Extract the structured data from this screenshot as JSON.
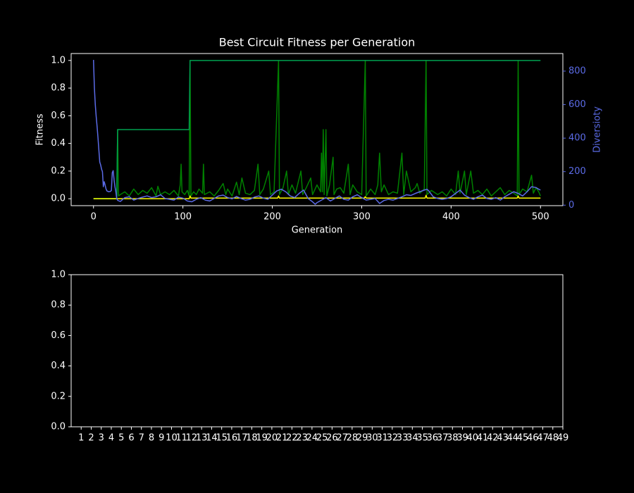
{
  "chart_data": [
    {
      "type": "line",
      "title": "Best Circuit Fitness per Generation",
      "xlabel": "Generation",
      "ylabel": "Fitness",
      "y2label": "Diversioty",
      "xlim": [
        -25,
        525
      ],
      "xticks": [
        0,
        100,
        200,
        300,
        400,
        500
      ],
      "ylim": [
        -0.05,
        1.05
      ],
      "yticks": [
        {
          "value": 0,
          "label": "0.0"
        },
        {
          "value": 0.2,
          "label": "0.2"
        },
        {
          "value": 0.4,
          "label": "0.4"
        },
        {
          "value": 0.6,
          "label": "0.6"
        },
        {
          "value": 0.8,
          "label": "0.8"
        },
        {
          "value": 1,
          "label": "1.0"
        }
      ],
      "y2lim": [
        -3,
        905
      ],
      "y2ticks": [
        0,
        200,
        400,
        600,
        800
      ],
      "series": [
        {
          "color": "#008000",
          "x": [
            0,
            5,
            10,
            15,
            20,
            25,
            26,
            27,
            28,
            30,
            35,
            40,
            45,
            50,
            55,
            60,
            65,
            70,
            72,
            75,
            80,
            85,
            90,
            95,
            97,
            98,
            99,
            102,
            105,
            107,
            108,
            109,
            112,
            115,
            118,
            122,
            123,
            124,
            130,
            135,
            140,
            145,
            148,
            150,
            155,
            160,
            163,
            166,
            170,
            175,
            180,
            184,
            186,
            190,
            196,
            198,
            202,
            207,
            208,
            212,
            216,
            218,
            222,
            226,
            232,
            234,
            238,
            243,
            245,
            250,
            254,
            255,
            256,
            257,
            258,
            260,
            261,
            264,
            268,
            269,
            272,
            276,
            280,
            285,
            287,
            290,
            295,
            300,
            304,
            305,
            310,
            315,
            318,
            320,
            322,
            325,
            330,
            335,
            340,
            345,
            347,
            350,
            355,
            360,
            362,
            365,
            370,
            372,
            373,
            378,
            385,
            390,
            395,
            400,
            405,
            408,
            410,
            415,
            417,
            422,
            425,
            430,
            435,
            440,
            445,
            450,
            455,
            460,
            465,
            470,
            474,
            475,
            476,
            480,
            485,
            490,
            492,
            495,
            498,
            500
          ],
          "values": [
            0,
            0,
            0,
            0,
            0,
            0,
            0,
            0.5,
            0.02,
            0.03,
            0.05,
            0.02,
            0.07,
            0.03,
            0.06,
            0.04,
            0.08,
            0.02,
            0.09,
            0.03,
            0.05,
            0.03,
            0.06,
            0.02,
            0.1,
            0.25,
            0.05,
            0.03,
            0.06,
            0.02,
            1,
            0.02,
            0.05,
            0.03,
            0.07,
            0.04,
            0.25,
            0.03,
            0.05,
            0.02,
            0.06,
            0.11,
            0.03,
            0.07,
            0.02,
            0.12,
            0.03,
            0.15,
            0.04,
            0.03,
            0.06,
            0.25,
            0.03,
            0.07,
            0.2,
            0.03,
            0.05,
            1,
            0.03,
            0.08,
            0.2,
            0.03,
            0.1,
            0.04,
            0.2,
            0.03,
            0.08,
            0.15,
            0.03,
            0.1,
            0.05,
            0.33,
            0.05,
            0.5,
            0.03,
            0.5,
            0.02,
            0.1,
            0.3,
            0.03,
            0.07,
            0.08,
            0.04,
            0.25,
            0.03,
            0.1,
            0.05,
            0.03,
            1,
            0.02,
            0.07,
            0.03,
            0.1,
            0.33,
            0.05,
            0.1,
            0.03,
            0.05,
            0.04,
            0.33,
            0.03,
            0.2,
            0.05,
            0.08,
            0.11,
            0.04,
            0.07,
            1,
            0.03,
            0.06,
            0.03,
            0.05,
            0.02,
            0.07,
            0.03,
            0.2,
            0.04,
            0.2,
            0.03,
            0.2,
            0.04,
            0.06,
            0.03,
            0.07,
            0.02,
            0.05,
            0.08,
            0.03,
            0.06,
            0.04,
            0.02,
            1,
            0.03,
            0.07,
            0.05,
            0.17,
            0.04,
            0.08,
            0.05,
            0.02
          ]
        },
        {
          "color": "#00a050",
          "x": [
            0,
            26,
            27,
            107,
            108,
            500
          ],
          "values": [
            0,
            0,
            0.5,
            0.5,
            1,
            1
          ]
        },
        {
          "color": "#ffff00",
          "x": [
            0,
            107,
            108,
            109,
            206,
            207,
            208,
            303,
            304,
            305,
            371,
            372,
            373,
            474,
            475,
            476,
            500
          ],
          "values": [
            0,
            0,
            0.02,
            0.005,
            0.005,
            0.02,
            0.005,
            0.005,
            0.015,
            0.005,
            0.005,
            0.025,
            0.005,
            0.005,
            0.02,
            0.005,
            0.005
          ]
        },
        {
          "color": "#5b6be6",
          "axis": "y2",
          "x": [
            0,
            1,
            2,
            3,
            4,
            5,
            6,
            7,
            8,
            9,
            10,
            11,
            12,
            13,
            14,
            15,
            17,
            19,
            20,
            21,
            22,
            23,
            24,
            25,
            26,
            27,
            30,
            35,
            40,
            45,
            50,
            55,
            60,
            65,
            70,
            75,
            80,
            85,
            90,
            95,
            100,
            105,
            110,
            115,
            120,
            125,
            130,
            135,
            140,
            145,
            150,
            155,
            160,
            165,
            170,
            175,
            180,
            185,
            190,
            195,
            200,
            205,
            210,
            215,
            220,
            225,
            230,
            235,
            240,
            245,
            248,
            250,
            255,
            260,
            265,
            270,
            275,
            280,
            285,
            290,
            295,
            300,
            305,
            310,
            315,
            320,
            325,
            330,
            335,
            340,
            345,
            350,
            355,
            360,
            365,
            370,
            373,
            375,
            380,
            385,
            390,
            395,
            400,
            405,
            410,
            415,
            420,
            425,
            430,
            435,
            440,
            445,
            450,
            455,
            460,
            465,
            470,
            475,
            480,
            485,
            490,
            495,
            498,
            500
          ],
          "values": [
            867,
            700,
            600,
            530,
            470,
            404,
            330,
            257,
            240,
            215,
            200,
            110,
            140,
            120,
            97,
            85,
            80,
            82,
            88,
            194,
            206,
            152,
            110,
            80,
            38,
            29,
            22,
            45,
            50,
            30,
            40,
            48,
            55,
            45,
            50,
            62,
            40,
            35,
            30,
            48,
            42,
            25,
            20,
            35,
            45,
            30,
            25,
            40,
            55,
            60,
            45,
            38,
            52,
            40,
            30,
            35,
            48,
            55,
            42,
            35,
            60,
            85,
            95,
            80,
            55,
            45,
            70,
            90,
            40,
            20,
            5,
            15,
            30,
            45,
            25,
            40,
            55,
            35,
            30,
            50,
            62,
            45,
            30,
            35,
            40,
            10,
            28,
            35,
            30,
            40,
            50,
            62,
            58,
            70,
            80,
            90,
            95,
            85,
            50,
            40,
            35,
            40,
            50,
            70,
            90,
            60,
            45,
            35,
            50,
            60,
            40,
            35,
            45,
            30,
            50,
            65,
            80,
            70,
            55,
            80,
            110,
            105,
            95,
            90
          ]
        }
      ]
    },
    {
      "type": "line",
      "xlim": [
        0,
        49
      ],
      "xticks": [
        1,
        2,
        3,
        4,
        5,
        6,
        7,
        8,
        9,
        10,
        11,
        12,
        13,
        14,
        15,
        16,
        17,
        18,
        19,
        20,
        21,
        22,
        23,
        24,
        25,
        26,
        27,
        28,
        29,
        30,
        31,
        32,
        33,
        34,
        35,
        36,
        37,
        38,
        39,
        40,
        41,
        42,
        43,
        44,
        45,
        46,
        47,
        48,
        49
      ],
      "ylim": [
        0,
        1
      ],
      "yticks": [
        {
          "value": 0,
          "label": "0.0"
        },
        {
          "value": 0.2,
          "label": "0.2"
        },
        {
          "value": 0.4,
          "label": "0.4"
        },
        {
          "value": 0.6,
          "label": "0.6"
        },
        {
          "value": 0.8,
          "label": "0.8"
        },
        {
          "value": 1,
          "label": "1.0"
        }
      ],
      "series": []
    }
  ]
}
